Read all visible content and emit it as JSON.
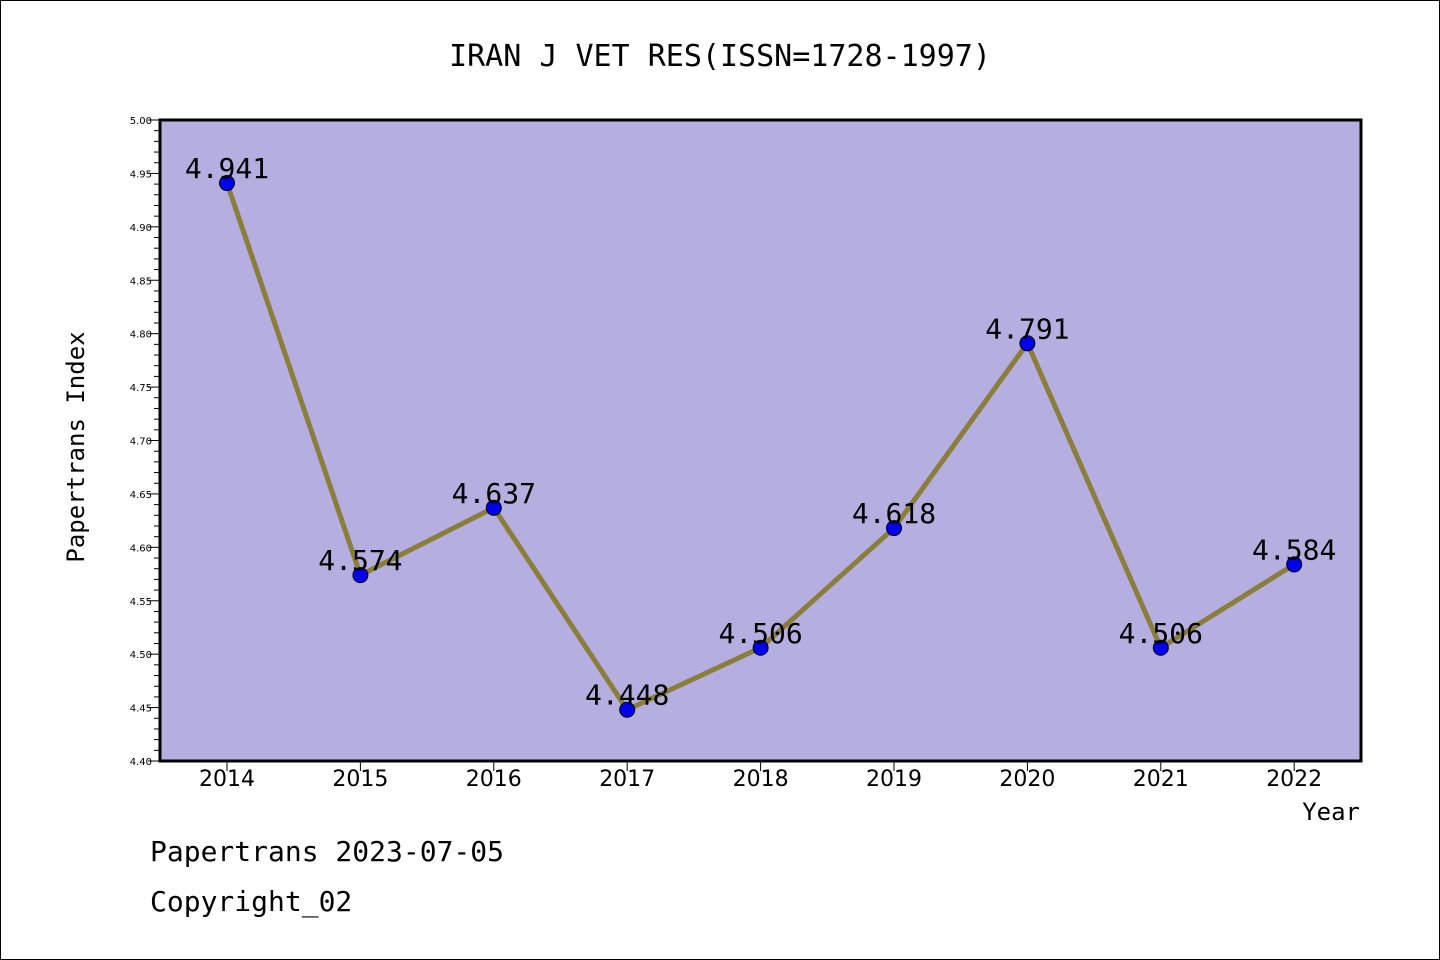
{
  "chart_data": {
    "type": "line",
    "title": "IRAN J VET RES(ISSN=1728-1997)",
    "xlabel": "Year",
    "ylabel": "Papertrans Index",
    "categories": [
      "2014",
      "2015",
      "2016",
      "2017",
      "2018",
      "2019",
      "2020",
      "2021",
      "2022"
    ],
    "series": [
      {
        "values": [
          4.941,
          4.574,
          4.637,
          4.448,
          4.506,
          4.618,
          4.791,
          4.506,
          4.584
        ]
      }
    ],
    "data_labels": [
      "4.941",
      "4.574",
      "4.637",
      "4.448",
      "4.506",
      "4.618",
      "4.791",
      "4.506",
      "4.584"
    ],
    "ylim": [
      4.4,
      5.0
    ],
    "yticks": [
      "4.40",
      "4.45",
      "4.50",
      "4.55",
      "4.60",
      "4.65",
      "4.70",
      "4.75",
      "4.80",
      "4.85",
      "4.90",
      "4.95",
      "5.00"
    ],
    "grid": false,
    "colors": {
      "plot_background": "#b5aee0",
      "line": "#8b7d3a",
      "marker": "#0000ee"
    }
  },
  "footer": {
    "line1": "Papertrans 2023-07-05",
    "line2": "Copyright_02"
  }
}
